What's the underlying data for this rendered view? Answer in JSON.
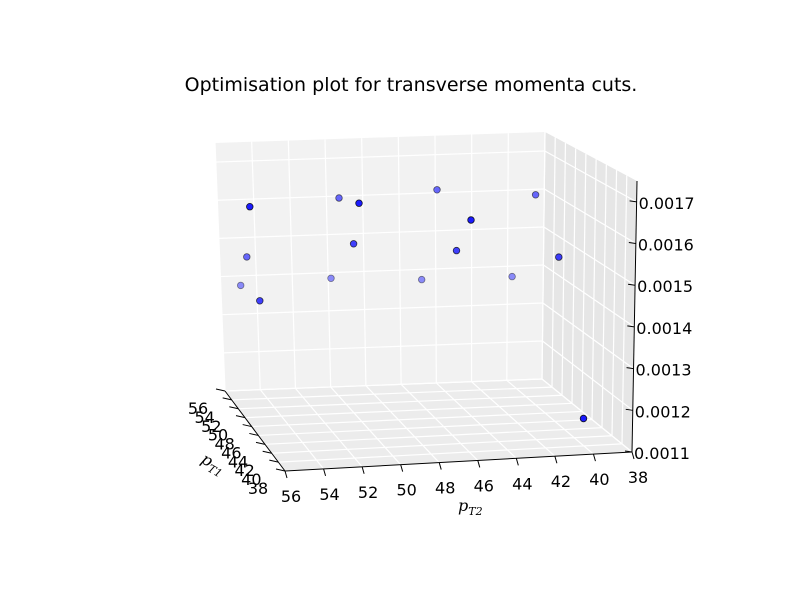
{
  "chart_data": {
    "type": "scatter",
    "projection": "3d",
    "title": "Optimisation plot for transverse momenta cuts.",
    "xlabel": "p_T1",
    "ylabel": "p_T2",
    "xlabel_text": "p",
    "xlabel_sub": "T1",
    "ylabel_text": "p",
    "ylabel_sub": "T2",
    "zlabel": "",
    "x_ticks": [
      "38",
      "40",
      "42",
      "44",
      "46",
      "48",
      "50",
      "52",
      "54",
      "56"
    ],
    "y_ticks": [
      "56",
      "54",
      "52",
      "50",
      "48",
      "46",
      "44",
      "42",
      "40",
      "38"
    ],
    "z_ticks": [
      "0.0011",
      "0.0012",
      "0.0013",
      "0.0014",
      "0.0015",
      "0.0016",
      "0.0017"
    ],
    "xlim": [
      38,
      56
    ],
    "ylim": [
      38,
      56
    ],
    "zlim": [
      0.0011,
      0.0017
    ],
    "grid": true,
    "marker_color": "#0000ff",
    "marker_edge_color": "#000000",
    "points": [
      {
        "x": 40,
        "y": 40,
        "z": 0.00116
      },
      {
        "x": 40,
        "y": 45,
        "z": 0.00158
      },
      {
        "x": 40,
        "y": 50,
        "z": 0.0016
      },
      {
        "x": 40,
        "y": 55,
        "z": 0.00158
      },
      {
        "x": 45,
        "y": 40,
        "z": 0.00148
      },
      {
        "x": 45,
        "y": 45,
        "z": 0.00149
      },
      {
        "x": 45,
        "y": 50,
        "z": 0.0015
      },
      {
        "x": 45,
        "y": 55,
        "z": 0.00138
      },
      {
        "x": 50,
        "y": 40,
        "z": 0.00159
      },
      {
        "x": 50,
        "y": 45,
        "z": 0.0016
      },
      {
        "x": 50,
        "y": 50,
        "z": 0.00158
      },
      {
        "x": 50,
        "y": 55,
        "z": 0.00145
      },
      {
        "x": 55,
        "y": 40,
        "z": 0.00136
      },
      {
        "x": 55,
        "y": 45,
        "z": 0.00136
      },
      {
        "x": 55,
        "y": 50,
        "z": 0.00137
      },
      {
        "x": 55,
        "y": 55,
        "z": 0.00136
      }
    ]
  }
}
